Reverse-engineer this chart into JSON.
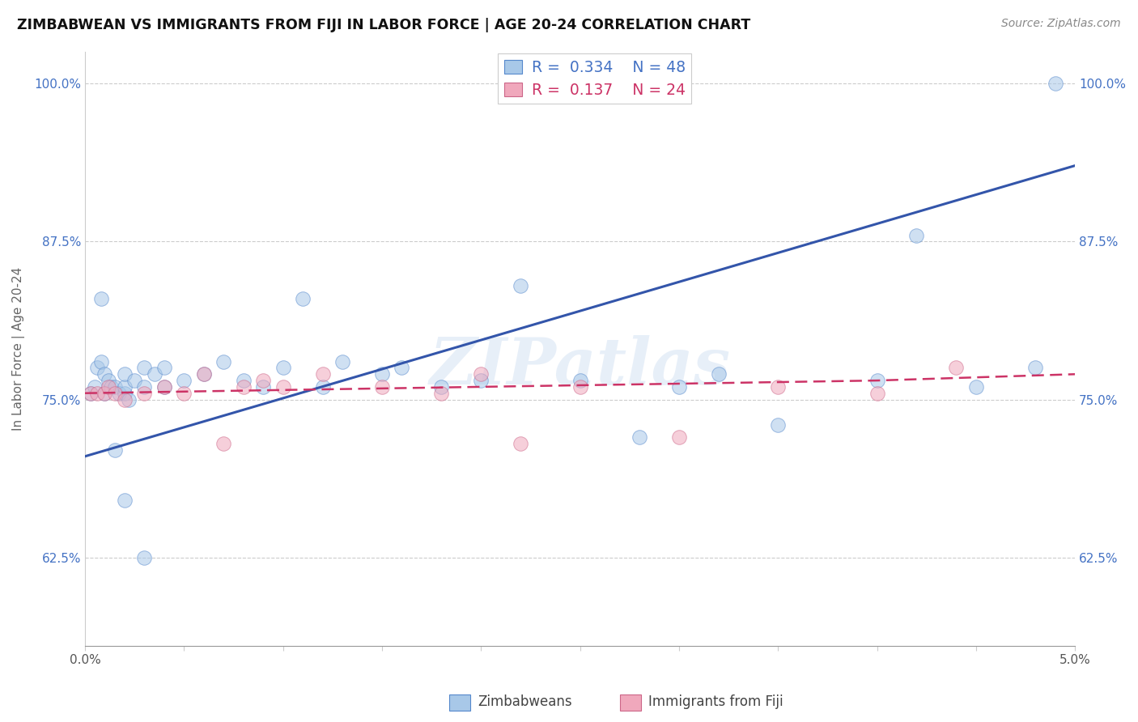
{
  "title": "ZIMBABWEAN VS IMMIGRANTS FROM FIJI IN LABOR FORCE | AGE 20-24 CORRELATION CHART",
  "source": "Source: ZipAtlas.com",
  "ylabel": "In Labor Force | Age 20-24",
  "xlim": [
    0.0,
    0.05
  ],
  "ylim": [
    0.555,
    1.025
  ],
  "xticks": [
    0.0,
    0.005,
    0.01,
    0.015,
    0.02,
    0.025,
    0.03,
    0.035,
    0.04,
    0.045,
    0.05
  ],
  "xtick_labels_show": [
    "0.0%",
    "",
    "",
    "",
    "",
    "",
    "",
    "",
    "",
    "",
    "5.0%"
  ],
  "yticks": [
    0.625,
    0.75,
    0.875,
    1.0
  ],
  "ytick_labels": [
    "62.5%",
    "75.0%",
    "87.5%",
    "100.0%"
  ],
  "legend_r_blue": "R =  0.334",
  "legend_n_blue": "N = 48",
  "legend_r_pink": "R =  0.137",
  "legend_n_pink": "N = 24",
  "legend_labels_bottom": [
    "Zimbabweans",
    "Immigrants from Fiji"
  ],
  "watermark": "ZIPatlas",
  "blue_scatter_x": [
    0.0003,
    0.0005,
    0.0006,
    0.0008,
    0.001,
    0.001,
    0.0012,
    0.0013,
    0.0015,
    0.0017,
    0.002,
    0.002,
    0.002,
    0.0022,
    0.0025,
    0.003,
    0.003,
    0.0035,
    0.004,
    0.004,
    0.005,
    0.006,
    0.007,
    0.008,
    0.009,
    0.01,
    0.011,
    0.012,
    0.013,
    0.015,
    0.016,
    0.018,
    0.02,
    0.022,
    0.025,
    0.028,
    0.03,
    0.032,
    0.035,
    0.04,
    0.042,
    0.045,
    0.048,
    0.049,
    0.0008,
    0.0015,
    0.002,
    0.003
  ],
  "blue_scatter_y": [
    0.755,
    0.76,
    0.775,
    0.78,
    0.77,
    0.755,
    0.765,
    0.76,
    0.76,
    0.755,
    0.755,
    0.76,
    0.77,
    0.75,
    0.765,
    0.775,
    0.76,
    0.77,
    0.775,
    0.76,
    0.765,
    0.77,
    0.78,
    0.765,
    0.76,
    0.775,
    0.83,
    0.76,
    0.78,
    0.77,
    0.775,
    0.76,
    0.765,
    0.84,
    0.765,
    0.72,
    0.76,
    0.77,
    0.73,
    0.765,
    0.88,
    0.76,
    0.775,
    1.0,
    0.83,
    0.71,
    0.67,
    0.625
  ],
  "pink_scatter_x": [
    0.0003,
    0.0006,
    0.001,
    0.0012,
    0.0015,
    0.002,
    0.003,
    0.004,
    0.005,
    0.006,
    0.007,
    0.008,
    0.009,
    0.01,
    0.012,
    0.015,
    0.018,
    0.02,
    0.022,
    0.025,
    0.03,
    0.035,
    0.04,
    0.044
  ],
  "pink_scatter_y": [
    0.755,
    0.755,
    0.755,
    0.76,
    0.755,
    0.75,
    0.755,
    0.76,
    0.755,
    0.77,
    0.715,
    0.76,
    0.765,
    0.76,
    0.77,
    0.76,
    0.755,
    0.77,
    0.715,
    0.76,
    0.72,
    0.76,
    0.755,
    0.775
  ],
  "blue_trend_x": [
    0.0,
    0.05
  ],
  "blue_trend_y": [
    0.705,
    0.935
  ],
  "pink_trend_x": [
    0.0,
    0.04,
    0.05
  ],
  "pink_trend_y": [
    0.755,
    0.765,
    0.77
  ],
  "scatter_size": 160,
  "scatter_alpha": 0.55,
  "background_color": "#ffffff",
  "grid_color": "#cccccc",
  "title_color": "#111111",
  "blue_color": "#a8c8e8",
  "blue_edge_color": "#5588cc",
  "pink_color": "#f0a8bc",
  "pink_edge_color": "#cc6688",
  "blue_line_color": "#3355aa",
  "pink_line_color": "#cc3366"
}
